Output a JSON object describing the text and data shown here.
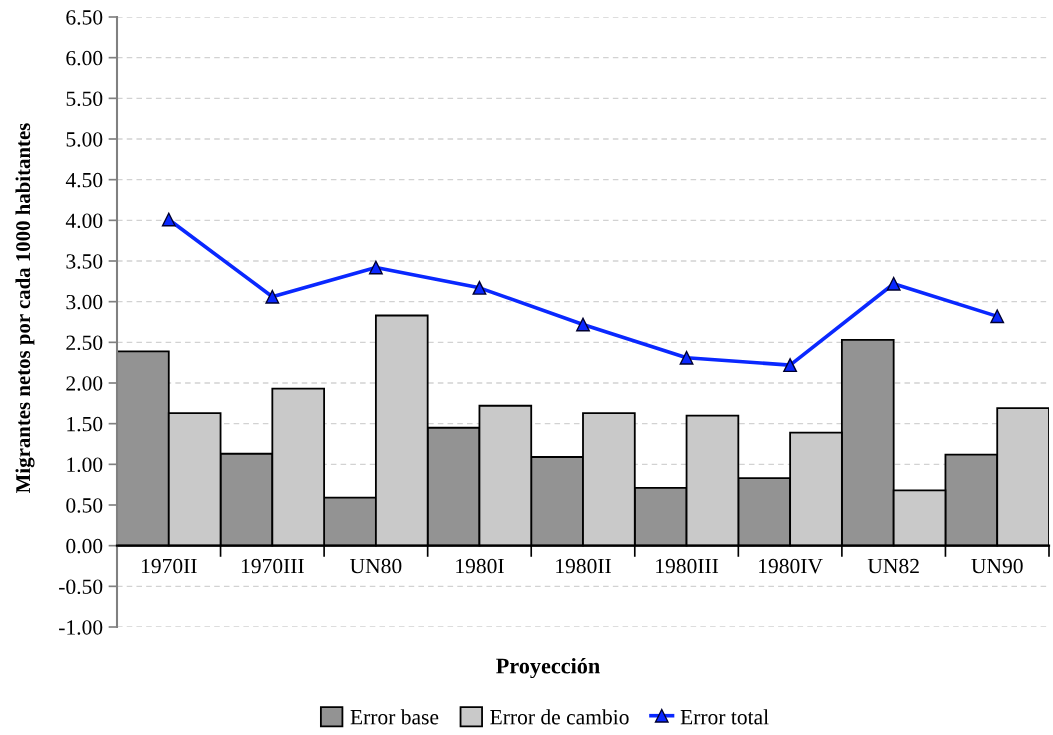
{
  "chart_data": {
    "type": "bar",
    "xlabel": "Proyección",
    "ylabel": "Migrantes netos por cada 1000 habitantes",
    "categories": [
      "1970II",
      "1970III",
      "UN80",
      "1980I",
      "1980II",
      "1980III",
      "1980IV",
      "UN82",
      "UN90"
    ],
    "series": [
      {
        "name": "Error base",
        "color": "#939393",
        "values": [
          2.39,
          1.13,
          0.59,
          1.45,
          1.09,
          0.71,
          0.83,
          2.53,
          1.12
        ]
      },
      {
        "name": "Error de cambio",
        "color": "#c9c9c9",
        "values": [
          1.63,
          1.93,
          2.83,
          1.72,
          1.63,
          1.6,
          1.39,
          0.68,
          1.69
        ]
      },
      {
        "name": "Error total",
        "type": "line",
        "color": "#0a28ff",
        "marker": "triangle",
        "line_style": "solid",
        "values": [
          4.01,
          3.06,
          3.42,
          3.17,
          2.72,
          2.31,
          2.22,
          3.22,
          2.82
        ]
      }
    ],
    "ylim": [
      -1.0,
      6.5
    ],
    "yticks": [
      {
        "value": -1.0,
        "label": "-1.00"
      },
      {
        "value": -0.5,
        "label": "-0.50"
      },
      {
        "value": 0.0,
        "label": "0.00"
      },
      {
        "value": 0.5,
        "label": "0.50"
      },
      {
        "value": 1.0,
        "label": "1.00"
      },
      {
        "value": 1.5,
        "label": "1.50"
      },
      {
        "value": 2.0,
        "label": "2.00"
      },
      {
        "value": 2.5,
        "label": "2.50"
      },
      {
        "value": 3.0,
        "label": "3.00"
      },
      {
        "value": 3.5,
        "label": "3.50"
      },
      {
        "value": 4.0,
        "label": "4.00"
      },
      {
        "value": 4.5,
        "label": "4.50"
      },
      {
        "value": 5.0,
        "label": "5.00"
      },
      {
        "value": 5.5,
        "label": "5.50"
      },
      {
        "value": 6.0,
        "label": "6.00"
      },
      {
        "value": 6.5,
        "label": "6.50"
      }
    ],
    "grid": "y",
    "legend": "bottom"
  }
}
